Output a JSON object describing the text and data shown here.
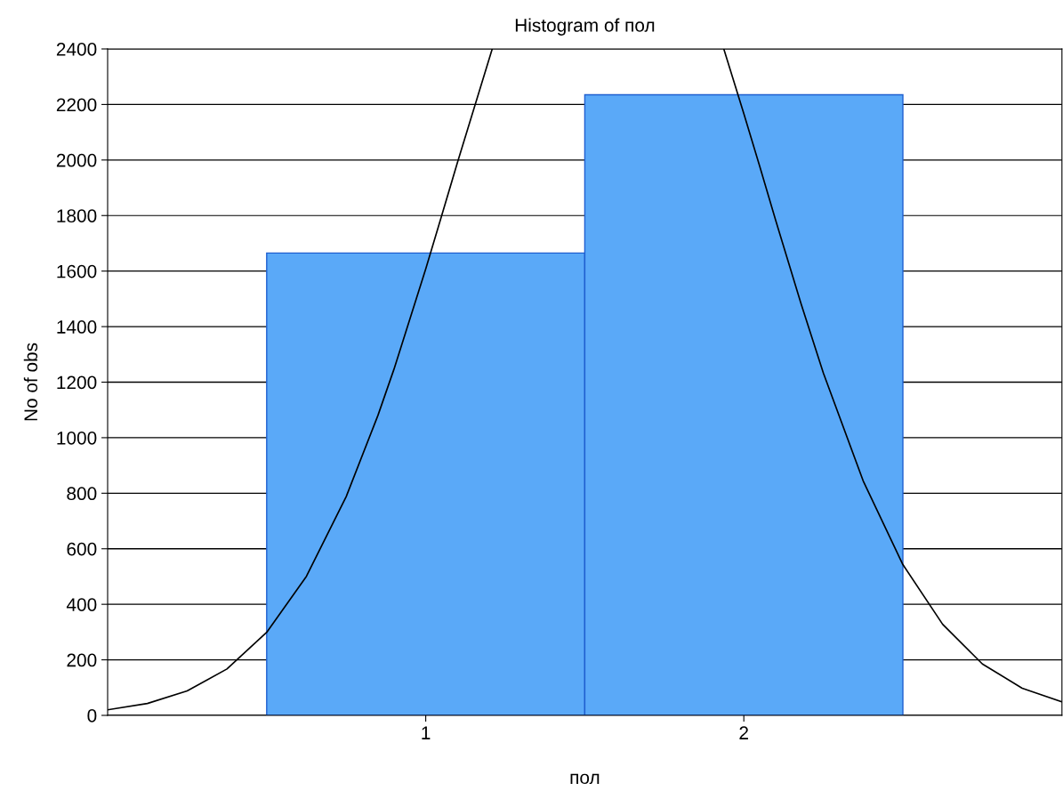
{
  "chart_data": {
    "type": "histogram",
    "title": "Histogram of пол",
    "xlabel": "пол",
    "ylabel": "No of obs",
    "bins": [
      0.5,
      1.5,
      2.5
    ],
    "values": [
      1665,
      2235
    ],
    "color": "#5aa9f8",
    "series": [
      {
        "type": "line",
        "color": "#000000",
        "x": [
          0,
          0.125,
          0.25,
          0.375,
          0.5,
          0.625,
          0.75,
          0.85,
          0.9,
          1.0,
          1.05,
          1.1,
          1.209,
          1.573,
          1.937,
          2.0,
          2.05,
          2.1,
          2.18,
          2.25,
          2.375,
          2.5,
          2.625,
          2.75,
          2.875,
          3.0
        ],
        "values": [
          20,
          43,
          88,
          167,
          299,
          501,
          788,
          1081,
          1246,
          1608,
          1799,
          1992,
          2400,
          null,
          2400,
          2167,
          1977,
          1783,
          1482,
          1233,
          845,
          543,
          328,
          185,
          98,
          49
        ]
      }
    ],
    "xlim": [
      0,
      3
    ],
    "xticks": [
      1,
      2
    ],
    "ylim": [
      0,
      2400
    ],
    "yticks": [
      0,
      200,
      400,
      600,
      800,
      1000,
      1200,
      1400,
      1600,
      1800,
      2000,
      2200,
      2400
    ],
    "grid": "y"
  }
}
